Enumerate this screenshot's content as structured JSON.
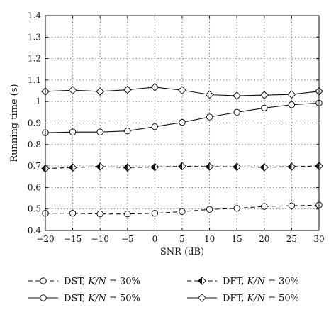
{
  "chart_data": {
    "type": "line",
    "title": "",
    "xlabel": "SNR (dB)",
    "ylabel": "Running time (s)",
    "x": [
      -20,
      -15,
      -10,
      -5,
      0,
      5,
      10,
      15,
      20,
      25,
      30
    ],
    "xlim": [
      -20,
      30
    ],
    "ylim": [
      0.4,
      1.4
    ],
    "xticks": [
      "−20",
      "−15",
      "−10",
      "−5",
      "0",
      "5",
      "10",
      "15",
      "20",
      "25",
      "30"
    ],
    "yticks": [
      "0.4",
      "0.5",
      "0.6",
      "0.7",
      "0.8",
      "0.9",
      "1",
      "1.1",
      "1.2",
      "1.3",
      "1.4"
    ],
    "grid": true,
    "legend_position": "bottom",
    "series": [
      {
        "id": "dst30",
        "name": "DST, K/N = 30%",
        "legend_prefix": "DST, ",
        "legend_var": "K/N",
        "legend_suffix": " = 30%",
        "marker": "circle",
        "line": "dashed",
        "values": [
          0.48,
          0.48,
          0.477,
          0.477,
          0.48,
          0.488,
          0.498,
          0.503,
          0.512,
          0.515,
          0.518
        ]
      },
      {
        "id": "dst50",
        "name": "DST, K/N = 50%",
        "legend_prefix": "DST, ",
        "legend_var": "K/N",
        "legend_suffix": " = 50%",
        "marker": "circle",
        "line": "solid",
        "values": [
          0.855,
          0.858,
          0.858,
          0.863,
          0.883,
          0.903,
          0.928,
          0.95,
          0.97,
          0.985,
          0.993
        ]
      },
      {
        "id": "dft30",
        "name": "DFT, K/N = 30%",
        "legend_prefix": "DFT, ",
        "legend_var": "K/N",
        "legend_suffix": " = 30%",
        "marker": "diamond-half",
        "line": "dashed",
        "values": [
          0.688,
          0.693,
          0.697,
          0.693,
          0.695,
          0.699,
          0.697,
          0.696,
          0.694,
          0.697,
          0.7
        ]
      },
      {
        "id": "dft50",
        "name": "DFT, K/N = 50%",
        "legend_prefix": "DFT, ",
        "legend_var": "K/N",
        "legend_suffix": " = 50%",
        "marker": "diamond",
        "line": "solid",
        "values": [
          1.047,
          1.053,
          1.047,
          1.055,
          1.067,
          1.053,
          1.032,
          1.027,
          1.03,
          1.033,
          1.048
        ]
      }
    ]
  }
}
